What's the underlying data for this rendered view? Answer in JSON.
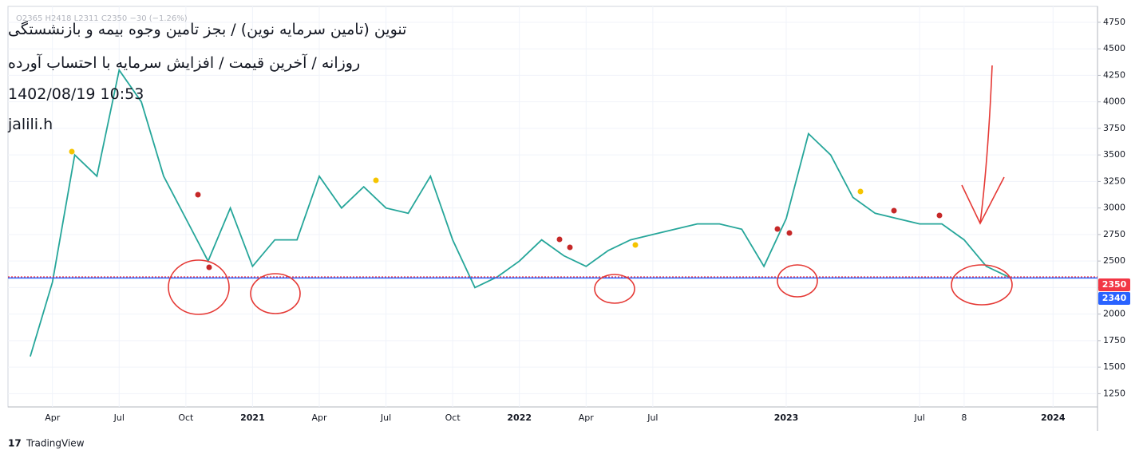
{
  "chart_data": {
    "type": "line",
    "title": "تنوین (تامین سرمایه نوین) / بجز تامین وجوه بیمه و بازنشستگی",
    "subtitle": "روزانه / آخرین قیمت / افزایش سرمایه با احتساب آورده",
    "timestamp": "1402/08/19 10:53",
    "author": "jalili.h",
    "ohlc_text": "O2365 H2418 L2311 C2350 −30 (−1.26%)",
    "brand": "TradingView",
    "x": [
      "2020-03",
      "2020-04",
      "2020-05",
      "2020-06",
      "2020-07",
      "2020-08",
      "2020-09",
      "2020-10",
      "2020-11",
      "2020-12",
      "2021-01",
      "2021-02",
      "2021-03",
      "2021-04",
      "2021-05",
      "2021-06",
      "2021-07",
      "2021-08",
      "2021-09",
      "2021-10",
      "2021-11",
      "2021-12",
      "2022-01",
      "2022-02",
      "2022-03",
      "2022-04",
      "2022-05",
      "2022-06",
      "2022-07",
      "2022-08",
      "2022-09",
      "2022-10",
      "2022-11",
      "2022-12",
      "2023-01",
      "2023-02",
      "2023-03",
      "2023-04",
      "2023-05",
      "2023-06",
      "2023-07",
      "2023-08",
      "2023-09",
      "2023-10",
      "2023-11"
    ],
    "series": [
      {
        "name": "تنوین",
        "color": "#26a69a",
        "values": [
          1600,
          2300,
          3500,
          3300,
          4300,
          4000,
          3300,
          2900,
          2500,
          3000,
          2450,
          2700,
          2700,
          3300,
          3000,
          3200,
          3000,
          2950,
          3300,
          2700,
          2250,
          2350,
          2500,
          2700,
          2550,
          2450,
          2600,
          2700,
          2750,
          2800,
          2850,
          2850,
          2800,
          2450,
          2900,
          3700,
          3500,
          3100,
          2950,
          2900,
          2850,
          2850,
          2700,
          2450,
          2350
        ]
      }
    ],
    "xlim": [
      "2020-02",
      "2024-03"
    ],
    "xticks": [
      {
        "value": "2020-04",
        "label": "Apr"
      },
      {
        "value": "2020-07",
        "label": "Jul"
      },
      {
        "value": "2020-10",
        "label": "Oct"
      },
      {
        "value": "2021-01",
        "label": "2021"
      },
      {
        "value": "2021-04",
        "label": "Apr"
      },
      {
        "value": "2021-07",
        "label": "Jul"
      },
      {
        "value": "2021-10",
        "label": "Oct"
      },
      {
        "value": "2022-01",
        "label": "2022"
      },
      {
        "value": "2022-04",
        "label": "Apr"
      },
      {
        "value": "2022-07",
        "label": "Jul"
      },
      {
        "value": "2023-01",
        "label": "2023"
      },
      {
        "value": "2023-07",
        "label": "Jul"
      },
      {
        "value": "2023-09",
        "label": "8"
      },
      {
        "value": "2024-01",
        "label": "2024"
      }
    ],
    "ylim": [
      1125,
      4900
    ],
    "yticks": [
      1250,
      1500,
      1750,
      2000,
      2250,
      2500,
      2750,
      3000,
      3250,
      3500,
      3750,
      4000,
      4250,
      4500,
      4750
    ],
    "grid": true,
    "price_lines": [
      {
        "value": 2350,
        "color": "#f23645"
      },
      {
        "value": 2340,
        "color": "#2962ff"
      }
    ]
  }
}
